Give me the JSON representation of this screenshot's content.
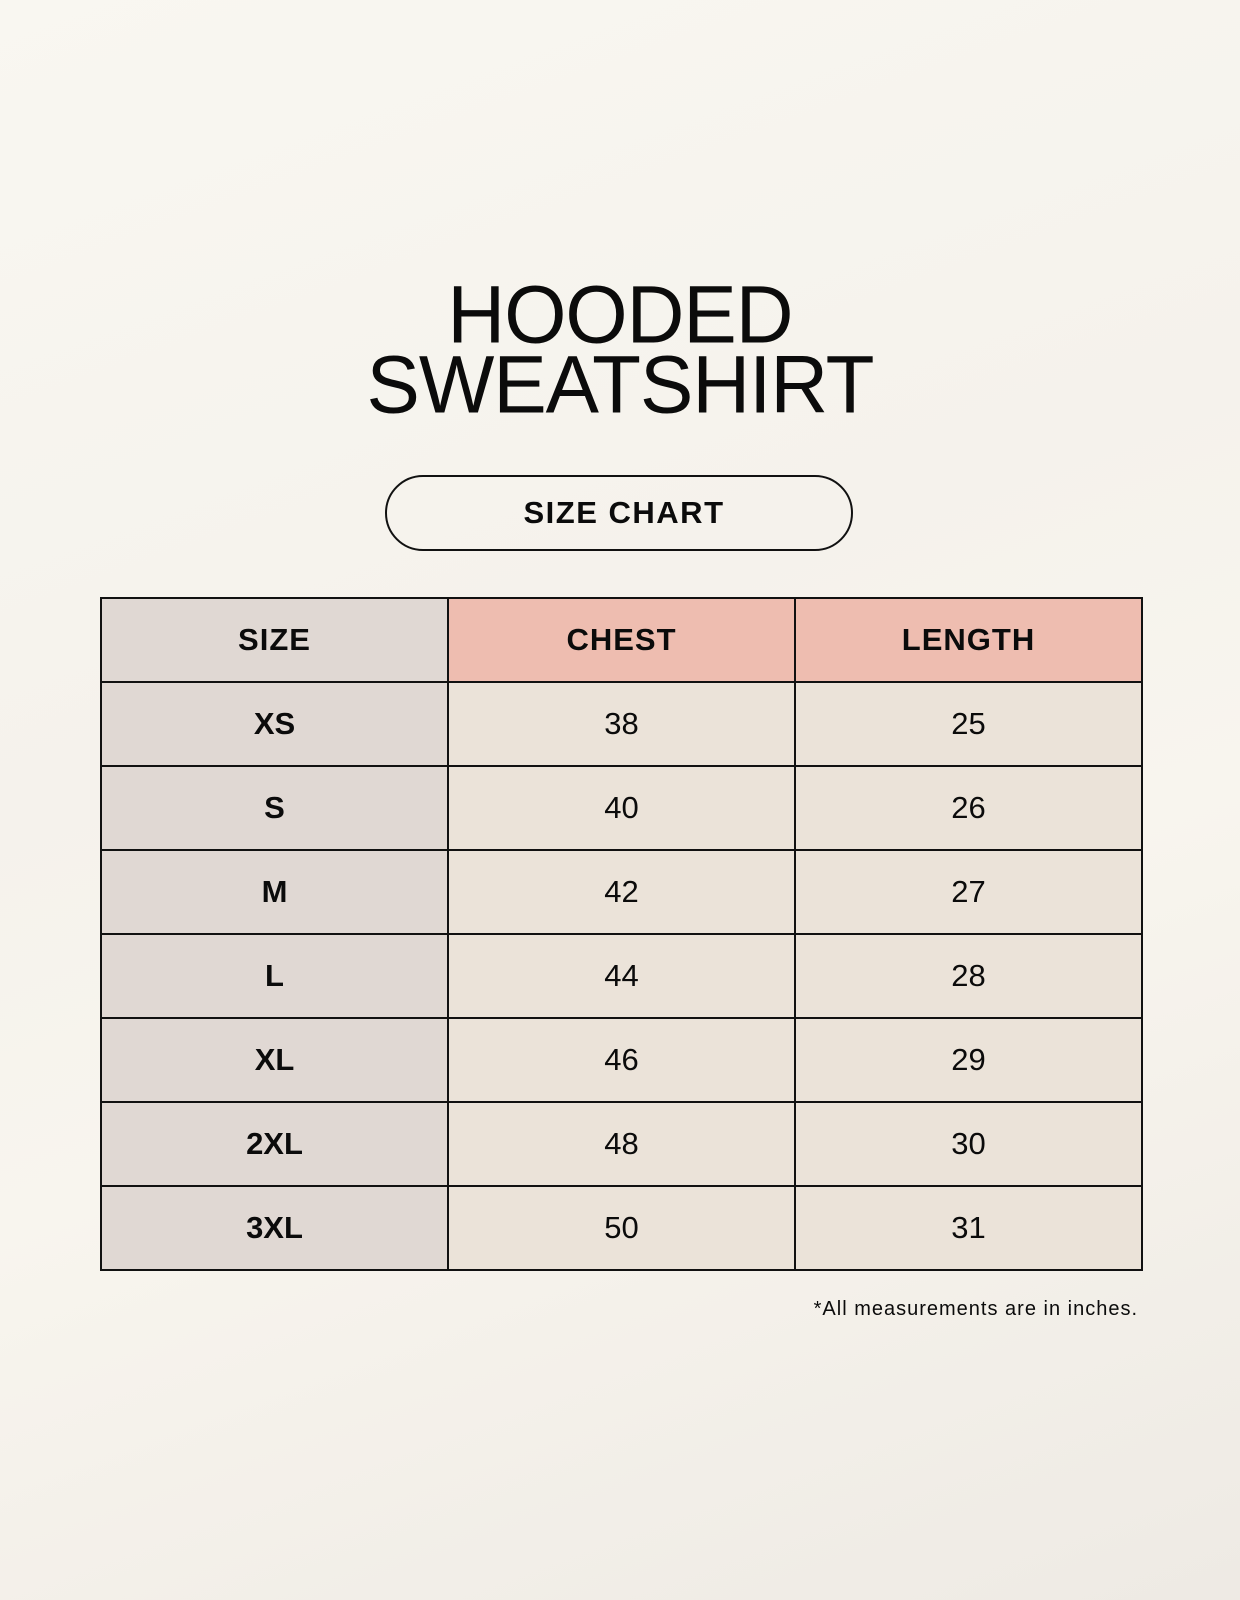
{
  "title": {
    "line1": "HOODED",
    "line2": "SWEATSHIRT"
  },
  "badge": "SIZE CHART",
  "table": {
    "headers": [
      "SIZE",
      "CHEST",
      "LENGTH"
    ],
    "rows": [
      [
        "XS",
        "38",
        "25"
      ],
      [
        "S",
        "40",
        "26"
      ],
      [
        "M",
        "42",
        "27"
      ],
      [
        "L",
        "44",
        "28"
      ],
      [
        "XL",
        "46",
        "29"
      ],
      [
        "2XL",
        "48",
        "30"
      ],
      [
        "3XL",
        "50",
        "31"
      ]
    ]
  },
  "note": "*All measurements are in inches.",
  "colors": {
    "size_column": "#e0d8d3",
    "header_accent": "#eebdb0",
    "value_cells": "#ebe3d9"
  }
}
